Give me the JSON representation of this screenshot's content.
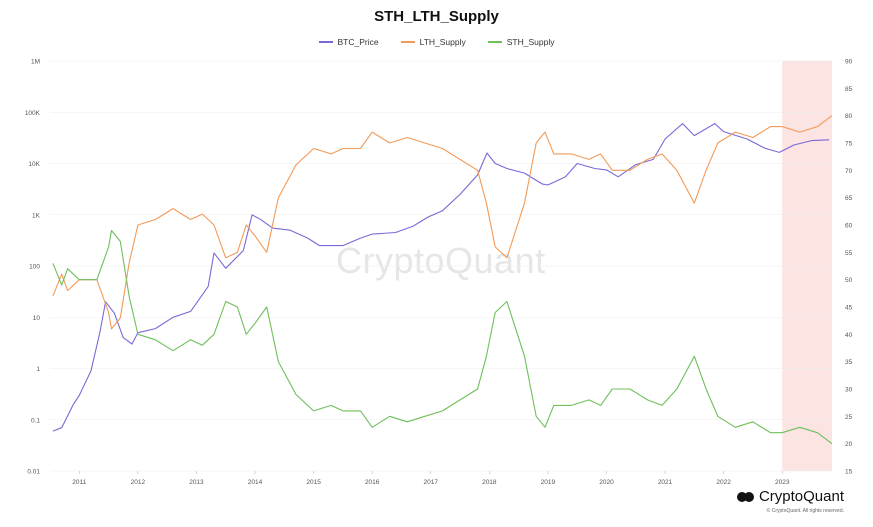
{
  "title": "STH_LTH_Supply",
  "watermark": "CryptoQuant",
  "brand": "CryptoQuant",
  "copyright": "© CryptoQuant. All rights reserved.",
  "colors": {
    "btc": "#7b68d8",
    "lth": "#f39a57",
    "sth": "#6fbf5b",
    "shade": "#fbe4e1",
    "grid": "#ededed"
  },
  "chart_data": {
    "type": "line",
    "x_ticks": [
      "2011",
      "2012",
      "2013",
      "2014",
      "2015",
      "2016",
      "2017",
      "2018",
      "2019",
      "2020",
      "2021",
      "2022",
      "2023"
    ],
    "x_range": [
      2010.5,
      2023.85
    ],
    "y_left": {
      "scale": "log",
      "ticks": [
        "0.01",
        "0.1",
        "1",
        "10",
        "100",
        "1K",
        "10K",
        "100K",
        "1M"
      ],
      "range": [
        0.01,
        1000000
      ]
    },
    "y_right": {
      "scale": "linear",
      "ticks": [
        "15",
        "20",
        "25",
        "30",
        "35",
        "40",
        "45",
        "50",
        "55",
        "60",
        "65",
        "70",
        "75",
        "80",
        "85",
        "90"
      ],
      "range": [
        15,
        90
      ]
    },
    "highlight_region": [
      2023.0,
      2023.85
    ],
    "series": [
      {
        "name": "BTC_Price",
        "axis": "left",
        "color": "#7b68d8",
        "x": [
          2010.55,
          2010.7,
          2010.9,
          2011.0,
          2011.2,
          2011.35,
          2011.45,
          2011.6,
          2011.75,
          2011.9,
          2012.0,
          2012.3,
          2012.6,
          2012.9,
          2013.2,
          2013.3,
          2013.5,
          2013.8,
          2013.95,
          2014.1,
          2014.3,
          2014.6,
          2014.9,
          2015.1,
          2015.5,
          2015.8,
          2016.0,
          2016.4,
          2016.7,
          2016.95,
          2017.2,
          2017.5,
          2017.8,
          2017.96,
          2018.1,
          2018.3,
          2018.6,
          2018.9,
          2019.0,
          2019.3,
          2019.5,
          2019.8,
          2020.0,
          2020.2,
          2020.5,
          2020.8,
          2021.0,
          2021.3,
          2021.5,
          2021.85,
          2022.0,
          2022.4,
          2022.7,
          2022.95,
          2023.2,
          2023.5,
          2023.8
        ],
        "values": [
          0.06,
          0.07,
          0.2,
          0.3,
          0.9,
          5,
          20,
          12,
          4,
          3,
          5,
          6,
          10,
          13,
          40,
          180,
          90,
          200,
          1000,
          800,
          550,
          500,
          350,
          250,
          250,
          350,
          420,
          450,
          600,
          900,
          1200,
          2500,
          6000,
          16000,
          10000,
          8000,
          6500,
          4000,
          3800,
          5500,
          10000,
          8000,
          7500,
          5500,
          9500,
          12000,
          30000,
          60000,
          35000,
          60000,
          42000,
          30000,
          20000,
          16500,
          23000,
          28000,
          29000
        ]
      },
      {
        "name": "LTH_Supply",
        "axis": "right",
        "color": "#f39a57",
        "x": [
          2010.55,
          2010.7,
          2010.8,
          2011.0,
          2011.2,
          2011.3,
          2011.5,
          2011.55,
          2011.7,
          2011.85,
          2012.0,
          2012.3,
          2012.6,
          2012.9,
          2013.1,
          2013.3,
          2013.5,
          2013.7,
          2013.85,
          2014.0,
          2014.2,
          2014.4,
          2014.7,
          2015.0,
          2015.3,
          2015.5,
          2015.8,
          2016.0,
          2016.3,
          2016.6,
          2016.9,
          2017.2,
          2017.5,
          2017.8,
          2017.95,
          2018.1,
          2018.3,
          2018.6,
          2018.8,
          2018.95,
          2019.1,
          2019.4,
          2019.7,
          2019.9,
          2020.1,
          2020.4,
          2020.7,
          2020.95,
          2021.2,
          2021.35,
          2021.5,
          2021.7,
          2021.9,
          2022.2,
          2022.5,
          2022.8,
          2023.0,
          2023.3,
          2023.6,
          2023.85
        ],
        "values": [
          47,
          51,
          48,
          50,
          50,
          50,
          44,
          41,
          43,
          53,
          60,
          61,
          63,
          61,
          62,
          60,
          54,
          55,
          60,
          58,
          55,
          65,
          71,
          74,
          73,
          74,
          74,
          77,
          75,
          76,
          75,
          74,
          72,
          70,
          64,
          56,
          54,
          64,
          75,
          77,
          73,
          73,
          72,
          73,
          70,
          70,
          72,
          73,
          70,
          67,
          64,
          70,
          75,
          77,
          76,
          78,
          78,
          77,
          78,
          80
        ]
      },
      {
        "name": "STH_Supply",
        "axis": "right",
        "color": "#6fbf5b",
        "x": [
          2010.55,
          2010.7,
          2010.8,
          2011.0,
          2011.2,
          2011.3,
          2011.5,
          2011.55,
          2011.7,
          2011.85,
          2012.0,
          2012.3,
          2012.6,
          2012.9,
          2013.1,
          2013.3,
          2013.5,
          2013.7,
          2013.85,
          2014.0,
          2014.2,
          2014.4,
          2014.7,
          2015.0,
          2015.3,
          2015.5,
          2015.8,
          2016.0,
          2016.3,
          2016.6,
          2016.9,
          2017.2,
          2017.5,
          2017.8,
          2017.95,
          2018.1,
          2018.3,
          2018.6,
          2018.8,
          2018.95,
          2019.1,
          2019.4,
          2019.7,
          2019.9,
          2020.1,
          2020.4,
          2020.7,
          2020.95,
          2021.2,
          2021.35,
          2021.5,
          2021.7,
          2021.9,
          2022.2,
          2022.5,
          2022.8,
          2023.0,
          2023.3,
          2023.6,
          2023.85
        ],
        "values": [
          53,
          49,
          52,
          50,
          50,
          50,
          56,
          59,
          57,
          47,
          40,
          39,
          37,
          39,
          38,
          40,
          46,
          45,
          40,
          42,
          45,
          35,
          29,
          26,
          27,
          26,
          26,
          23,
          25,
          24,
          25,
          26,
          28,
          30,
          36,
          44,
          46,
          36,
          25,
          23,
          27,
          27,
          28,
          27,
          30,
          30,
          28,
          27,
          30,
          33,
          36,
          30,
          25,
          23,
          24,
          22,
          22,
          23,
          22,
          20
        ]
      }
    ]
  }
}
